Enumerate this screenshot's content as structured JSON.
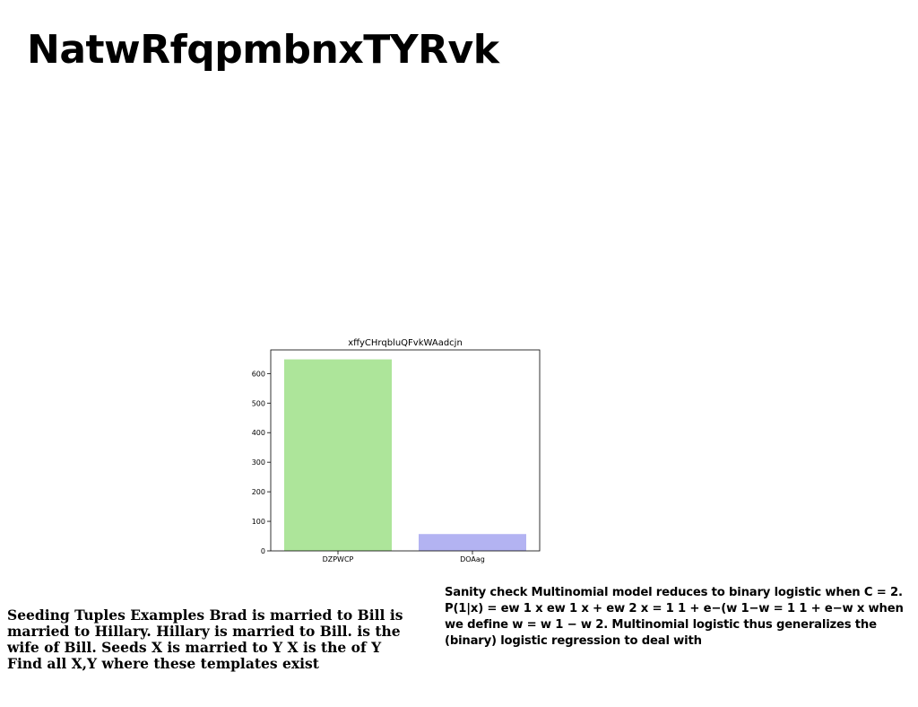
{
  "title": "NatwRfqpmbnxTYRvk",
  "chart_data": {
    "type": "bar",
    "title": "xffyCHrqbluQFvkWAadcjn",
    "categories": [
      "DZPWCP",
      "DOAag"
    ],
    "values": [
      648,
      57
    ],
    "colors": [
      "#ade59a",
      "#b3b3f2"
    ],
    "xlabel": "",
    "ylabel": "",
    "ylim": [
      0,
      680
    ],
    "yticks": [
      0,
      100,
      200,
      300,
      400,
      500,
      600
    ],
    "grid": false
  },
  "paragraph_left": "Seeding Tuples Examples Brad is married to Bill is married to Hillary. Hillary is married to Bill. is the wife of Bill. Seeds X is married to Y X is the of Y Find all X,Y where these templates exist",
  "paragraph_right": "Sanity check Multinomial model reduces to binary logistic when C = 2. P(1|x) = ew 1 x ew 1 x + ew 2 x = 1 1 + e−(w 1−w = 1 1 + e−w x when we define w = w 1 − w 2. Multinomial logistic thus generalizes the (binary) logistic regression to deal with"
}
